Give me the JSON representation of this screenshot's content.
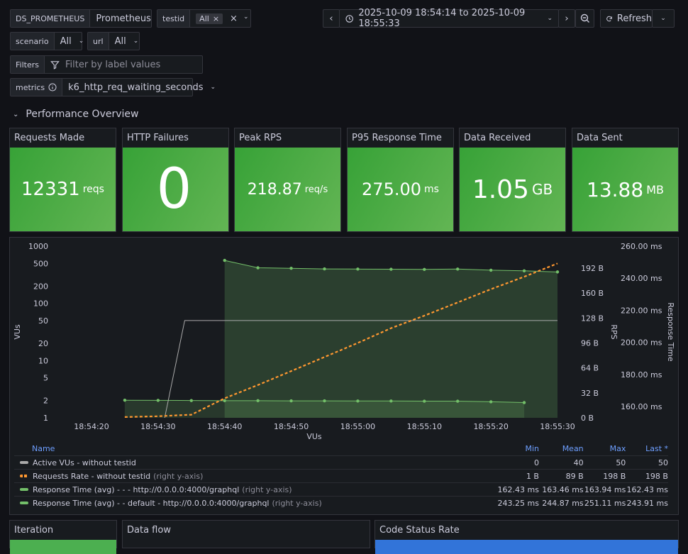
{
  "variables": {
    "datasource": {
      "label": "DS_PROMETHEUS",
      "value": "Prometheus"
    },
    "testid": {
      "label": "testid",
      "chip": "All"
    },
    "scenario": {
      "label": "scenario",
      "value": "All"
    },
    "url": {
      "label": "url",
      "value": "All"
    },
    "filters": {
      "label": "Filters",
      "placeholder": "Filter by label values"
    },
    "metrics": {
      "label": "metrics",
      "value": "k6_http_req_waiting_seconds"
    }
  },
  "time_range": {
    "text": "2025-10-09 18:54:14 to 2025-10-09 18:55:33"
  },
  "refresh_label": "Refresh",
  "row_title": "Performance Overview",
  "stats": [
    {
      "title": "Requests Made",
      "value": "12331",
      "unit": "reqs"
    },
    {
      "title": "HTTP Failures",
      "value": "0",
      "unit": ""
    },
    {
      "title": "Peak RPS",
      "value": "218.87",
      "unit": "req/s"
    },
    {
      "title": "P95 Response Time",
      "value": "275.00",
      "unit": "ms"
    },
    {
      "title": "Data Received",
      "value": "1.05",
      "unit": "GB"
    },
    {
      "title": "Data Sent",
      "value": "13.88",
      "unit": "MB"
    }
  ],
  "chart_data": {
    "type": "line",
    "xlabel": "VUs",
    "x_ticks": [
      "18:54:20",
      "18:54:30",
      "18:54:40",
      "18:54:50",
      "18:55:00",
      "18:55:10",
      "18:55:20",
      "18:55:30"
    ],
    "y_left": {
      "label": "VUs",
      "scale": "log",
      "ticks": [
        "1000",
        "500",
        "200",
        "100",
        "50",
        "20",
        "10",
        "5",
        "2",
        "1"
      ]
    },
    "y_right1": {
      "label": "RPS",
      "ticks": [
        "192 B",
        "160 B",
        "128 B",
        "96 B",
        "64 B",
        "32 B",
        "0 B"
      ]
    },
    "y_right2": {
      "label": "Response Time",
      "ticks": [
        "260.00 ms",
        "240.00 ms",
        "220.00 ms",
        "200.00 ms",
        "180.00 ms",
        "160.00 ms"
      ]
    },
    "series": [
      {
        "name": "Active VUs - without testid",
        "color": "#aaaaaa",
        "x": [
          "18:54:31",
          "18:54:34",
          "18:55:30"
        ],
        "values": [
          0,
          50,
          50
        ]
      },
      {
        "name": "Requests Rate - without testid",
        "color": "#ff9830",
        "x": [
          "18:54:25",
          "18:54:30",
          "18:54:35",
          "18:54:40",
          "18:54:45",
          "18:54:50",
          "18:54:55",
          "18:55:00",
          "18:55:05",
          "18:55:10",
          "18:55:15",
          "18:55:20",
          "18:55:25",
          "18:55:30"
        ],
        "values": [
          1,
          2,
          4,
          25,
          42,
          60,
          78,
          96,
          115,
          131,
          148,
          165,
          181,
          198
        ]
      },
      {
        "name": "Response Time (avg) - - - http://0.0.0.0:4000/graphql",
        "color": "#73bf69",
        "x": [
          "18:54:25",
          "18:54:30",
          "18:54:35",
          "18:54:40",
          "18:54:45",
          "18:54:50",
          "18:54:55",
          "18:55:00",
          "18:55:05",
          "18:55:10",
          "18:55:15",
          "18:55:20",
          "18:55:25"
        ],
        "values": [
          163.9,
          163.8,
          163.7,
          163.6,
          163.6,
          163.5,
          163.5,
          163.4,
          163.4,
          163.3,
          163.3,
          162.9,
          162.43
        ]
      },
      {
        "name": "Response Time (avg) - - default - http://0.0.0.0:4000/graphql",
        "color": "#73bf69",
        "x": [
          "18:54:40",
          "18:54:45",
          "18:54:50",
          "18:54:55",
          "18:55:00",
          "18:55:05",
          "18:55:10",
          "18:55:15",
          "18:55:20",
          "18:55:25",
          "18:55:30"
        ],
        "values": [
          251.11,
          246.5,
          246.2,
          245.8,
          245.7,
          245.6,
          245.5,
          245.7,
          245.0,
          244.6,
          243.91
        ]
      }
    ]
  },
  "legend": {
    "headers": {
      "name": "Name",
      "min": "Min",
      "mean": "Mean",
      "max": "Max",
      "last": "Last *"
    },
    "rows": [
      {
        "name": "Active VUs - without testid",
        "suffix": "",
        "color": "#aaaaaa",
        "dashed": false,
        "min": "0",
        "mean": "40",
        "max": "50",
        "last": "50"
      },
      {
        "name": "Requests Rate - without testid",
        "suffix": "(right y-axis)",
        "color": "#ff9830",
        "dashed": true,
        "min": "1 B",
        "mean": "89 B",
        "max": "198 B",
        "last": "198 B"
      },
      {
        "name": "Response Time (avg) - - - http://0.0.0.0:4000/graphql",
        "suffix": "(right y-axis)",
        "color": "#73bf69",
        "dashed": false,
        "min": "162.43 ms",
        "mean": "163.46 ms",
        "max": "163.94 ms",
        "last": "162.43 ms"
      },
      {
        "name": "Response Time (avg) - - default - http://0.0.0.0:4000/graphql",
        "suffix": "(right y-axis)",
        "color": "#73bf69",
        "dashed": false,
        "min": "243.25 ms",
        "mean": "244.87 ms",
        "max": "251.11 ms",
        "last": "243.91 ms"
      }
    ]
  },
  "bottom_panels": {
    "iteration": "Iteration",
    "data_flow": "Data flow",
    "code_status": "Code Status Rate"
  }
}
